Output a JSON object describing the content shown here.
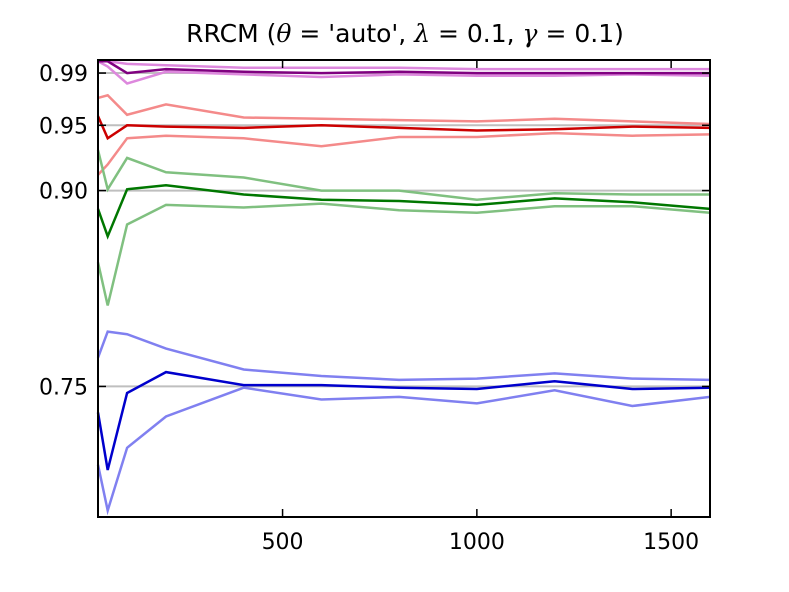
{
  "chart_data": {
    "type": "line",
    "title": {
      "prefix": "RRCM (",
      "theta": "θ",
      "theta_value": " = 'auto', ",
      "lambda": "λ",
      "lambda_value": " = 0.1, ",
      "gamma": "γ",
      "gamma_value": " = 0.1)"
    },
    "xlim": [
      25,
      1600
    ],
    "ylim": [
      0.65,
      1.0
    ],
    "xticks": [
      500,
      1000,
      1500
    ],
    "xtick_labels": [
      "500",
      "1000",
      "1500"
    ],
    "yticks": [
      0.75,
      0.9,
      0.95,
      0.99
    ],
    "ytick_labels": [
      "0.75",
      "0.90",
      "0.95",
      "0.99"
    ],
    "reference_lines": [
      0.75,
      0.9,
      0.95,
      0.99
    ],
    "grid": false,
    "x": [
      25,
      50,
      100,
      200,
      400,
      600,
      800,
      1000,
      1200,
      1400,
      1600
    ],
    "colors": {
      "purple_center": "#800080",
      "purple_band": "#dd88dd",
      "red_center": "#cc0000",
      "red_band": "#f48a8a",
      "green_center": "#007700",
      "green_band": "#80c080",
      "blue_center": "#0000cc",
      "blue_band": "#8080f0",
      "reference": "#bfbfbf"
    },
    "series": [
      {
        "role": "band-upper",
        "color_key": "purple_band",
        "values": [
          0.999,
          0.999,
          0.997,
          0.996,
          0.994,
          0.994,
          0.994,
          0.993,
          0.993,
          0.993,
          0.993
        ]
      },
      {
        "role": "center",
        "color_key": "purple_center",
        "values": [
          0.999,
          0.999,
          0.99,
          0.993,
          0.991,
          0.99,
          0.991,
          0.99,
          0.99,
          0.99,
          0.99
        ]
      },
      {
        "role": "band-lower",
        "color_key": "purple_band",
        "values": [
          0.999,
          0.995,
          0.982,
          0.991,
          0.989,
          0.987,
          0.989,
          0.988,
          0.988,
          0.989,
          0.988
        ]
      },
      {
        "role": "band-upper",
        "color_key": "red_band",
        "values": [
          0.971,
          0.973,
          0.958,
          0.966,
          0.956,
          0.955,
          0.954,
          0.953,
          0.955,
          0.953,
          0.951
        ]
      },
      {
        "role": "center",
        "color_key": "red_center",
        "values": [
          0.957,
          0.94,
          0.95,
          0.949,
          0.948,
          0.95,
          0.948,
          0.946,
          0.947,
          0.949,
          0.948
        ]
      },
      {
        "role": "band-lower",
        "color_key": "red_band",
        "values": [
          0.912,
          0.92,
          0.94,
          0.942,
          0.94,
          0.934,
          0.941,
          0.941,
          0.944,
          0.942,
          0.943
        ]
      },
      {
        "role": "band-upper",
        "color_key": "green_band",
        "values": [
          0.931,
          0.901,
          0.925,
          0.914,
          0.91,
          0.9,
          0.9,
          0.893,
          0.898,
          0.897,
          0.897
        ]
      },
      {
        "role": "center",
        "color_key": "green_center",
        "values": [
          0.886,
          0.865,
          0.901,
          0.904,
          0.897,
          0.893,
          0.892,
          0.889,
          0.894,
          0.891,
          0.886
        ]
      },
      {
        "role": "band-lower",
        "color_key": "green_band",
        "values": [
          0.845,
          0.812,
          0.874,
          0.889,
          0.887,
          0.89,
          0.885,
          0.883,
          0.888,
          0.888,
          0.883
        ]
      },
      {
        "role": "band-upper",
        "color_key": "blue_band",
        "values": [
          0.772,
          0.792,
          0.79,
          0.779,
          0.763,
          0.758,
          0.755,
          0.756,
          0.76,
          0.756,
          0.755
        ]
      },
      {
        "role": "center",
        "color_key": "blue_center",
        "values": [
          0.73,
          0.686,
          0.745,
          0.761,
          0.751,
          0.751,
          0.749,
          0.748,
          0.754,
          0.748,
          0.749
        ]
      },
      {
        "role": "band-lower",
        "color_key": "blue_band",
        "values": [
          0.69,
          0.655,
          0.703,
          0.727,
          0.749,
          0.74,
          0.742,
          0.737,
          0.747,
          0.735,
          0.742
        ]
      }
    ]
  }
}
